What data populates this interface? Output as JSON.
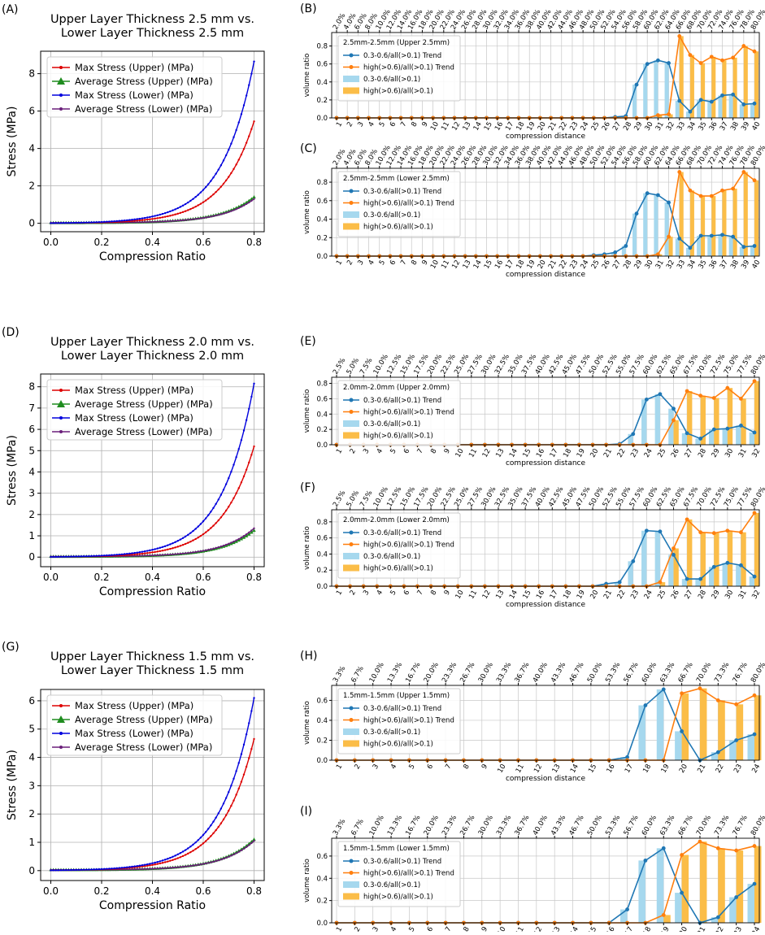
{
  "chart_data": [
    {
      "type": "line",
      "panel": "(A)",
      "title": "Upper Layer Thickness 2.5 mm vs.\nLower Layer Thickness 2.5 mm",
      "xlabel": "Compression Ratio",
      "ylabel": "Stress (MPa)",
      "xlim": [
        -0.04,
        0.84
      ],
      "ylim": [
        -0.45,
        9.2
      ],
      "xticks": [
        "0.0",
        "0.2",
        "0.4",
        "0.6",
        "0.8"
      ],
      "yticks": [
        "0",
        "2",
        "4",
        "6",
        "8"
      ],
      "series": [
        {
          "name": "Max Stress (Upper) (MPa)",
          "color": "#dd0000",
          "marker": "dot",
          "max": 5.45
        },
        {
          "name": "Average Stress (Upper) (MPa)",
          "color": "#1e8c1e",
          "marker": "triangle",
          "max": 1.4
        },
        {
          "name": "Max Stress (Lower) (MPa)",
          "color": "#0000dd",
          "marker": "dot",
          "max": 8.65
        },
        {
          "name": "Average Stress (Lower) (MPa)",
          "color": "#6a1f7a",
          "marker": "dot",
          "max": 1.3
        }
      ]
    },
    {
      "type": "bar",
      "panel": "(B)",
      "legend_title": "2.5mm-2.5mm (Upper 2.5mm)",
      "xlabel": "compression distance",
      "ylabel": "volume ratio",
      "ylim": [
        0,
        0.95
      ],
      "yticks": [
        "0.0",
        "0.2",
        "0.4",
        "0.6",
        "0.8"
      ],
      "categories": [
        "1",
        "2",
        "3",
        "4",
        "5",
        "6",
        "7",
        "8",
        "9",
        "10",
        "11",
        "12",
        "13",
        "14",
        "15",
        "16",
        "17",
        "18",
        "19",
        "20",
        "21",
        "22",
        "23",
        "24",
        "25",
        "26",
        "27",
        "28",
        "29",
        "30",
        "31",
        "32",
        "33",
        "34",
        "35",
        "36",
        "37",
        "38",
        "39",
        "40"
      ],
      "top_labels": [
        "2.0%",
        "4.0%",
        "6.0%",
        "8.0%",
        "10.0%",
        "12.0%",
        "14.0%",
        "16.0%",
        "18.0%",
        "20.0%",
        "22.0%",
        "24.0%",
        "26.0%",
        "28.0%",
        "30.0%",
        "32.0%",
        "34.0%",
        "36.0%",
        "38.0%",
        "40.0%",
        "42.0%",
        "44.0%",
        "46.0%",
        "48.0%",
        "50.0%",
        "52.0%",
        "54.0%",
        "56.0%",
        "58.0%",
        "60.0%",
        "62.0%",
        "64.0%",
        "66.0%",
        "68.0%",
        "70.0%",
        "72.0%",
        "74.0%",
        "76.0%",
        "78.0%",
        "80.0%"
      ],
      "series": [
        {
          "name": "0.3-0.6/all(>0.1) Trend",
          "values": [
            0,
            0,
            0,
            0,
            0,
            0,
            0,
            0,
            0,
            0,
            0,
            0,
            0,
            0,
            0,
            0,
            0,
            0,
            0,
            0,
            0,
            0,
            0,
            0,
            0,
            0,
            0.01,
            0.02,
            0.37,
            0.6,
            0.64,
            0.61,
            0.19,
            0.07,
            0.2,
            0.18,
            0.25,
            0.26,
            0.15,
            0.16
          ]
        },
        {
          "name": "high(>0.6)/all(>0.1) Trend",
          "values": [
            0,
            0,
            0,
            0,
            0,
            0,
            0,
            0,
            0,
            0,
            0,
            0,
            0,
            0,
            0,
            0,
            0,
            0,
            0,
            0,
            0,
            0,
            0,
            0,
            0,
            0,
            0,
            0,
            0,
            0,
            0.03,
            0.04,
            0.91,
            0.7,
            0.61,
            0.68,
            0.64,
            0.67,
            0.8,
            0.74
          ]
        },
        {
          "name": "0.3-0.6/all(>0.1)"
        },
        {
          "name": "high(>0.6)/all(>0.1)"
        }
      ]
    },
    {
      "type": "bar",
      "panel": "(C)",
      "legend_title": "2.5mm-2.5mm (Lower 2.5mm)",
      "xlabel": "compression distance",
      "ylabel": "volume ratio",
      "ylim": [
        0,
        0.95
      ],
      "yticks": [
        "0.0",
        "0.2",
        "0.4",
        "0.6",
        "0.8"
      ],
      "categories": [
        "1",
        "2",
        "3",
        "4",
        "5",
        "6",
        "7",
        "8",
        "9",
        "10",
        "11",
        "12",
        "13",
        "14",
        "15",
        "16",
        "17",
        "18",
        "19",
        "20",
        "21",
        "22",
        "23",
        "24",
        "25",
        "26",
        "27",
        "28",
        "29",
        "30",
        "31",
        "32",
        "33",
        "34",
        "35",
        "36",
        "37",
        "38",
        "39",
        "40"
      ],
      "top_labels": [
        "2.0%",
        "4.0%",
        "6.0%",
        "8.0%",
        "10.0%",
        "12.0%",
        "14.0%",
        "16.0%",
        "18.0%",
        "20.0%",
        "22.0%",
        "24.0%",
        "26.0%",
        "28.0%",
        "30.0%",
        "32.0%",
        "34.0%",
        "36.0%",
        "38.0%",
        "40.0%",
        "42.0%",
        "44.0%",
        "46.0%",
        "48.0%",
        "50.0%",
        "52.0%",
        "54.0%",
        "56.0%",
        "58.0%",
        "60.0%",
        "62.0%",
        "64.0%",
        "66.0%",
        "68.0%",
        "70.0%",
        "72.0%",
        "74.0%",
        "76.0%",
        "78.0%",
        "80.0%"
      ],
      "series": [
        {
          "name": "0.3-0.6/all(>0.1) Trend",
          "values": [
            0,
            0,
            0,
            0,
            0,
            0,
            0,
            0,
            0,
            0,
            0,
            0,
            0,
            0,
            0,
            0,
            0,
            0,
            0,
            0,
            0,
            0,
            0,
            0,
            0.01,
            0.02,
            0.04,
            0.11,
            0.46,
            0.68,
            0.66,
            0.58,
            0.19,
            0.09,
            0.22,
            0.22,
            0.23,
            0.21,
            0.1,
            0.11
          ]
        },
        {
          "name": "high(>0.6)/all(>0.1) Trend",
          "values": [
            0,
            0,
            0,
            0,
            0,
            0,
            0,
            0,
            0,
            0,
            0,
            0,
            0,
            0,
            0,
            0,
            0,
            0,
            0,
            0,
            0,
            0,
            0,
            0,
            0,
            0,
            0,
            0,
            0,
            0,
            0.02,
            0.21,
            0.91,
            0.71,
            0.65,
            0.65,
            0.71,
            0.73,
            0.91,
            0.82
          ]
        },
        {
          "name": "0.3-0.6/all(>0.1)"
        },
        {
          "name": "high(>0.6)/all(>0.1)"
        }
      ]
    },
    {
      "type": "line",
      "panel": "(D)",
      "title": "Upper Layer Thickness 2.0 mm vs.\nLower Layer Thickness 2.0 mm",
      "xlabel": "Compression Ratio",
      "ylabel": "Stress (MPa)",
      "xlim": [
        -0.04,
        0.84
      ],
      "ylim": [
        -0.45,
        8.6
      ],
      "xticks": [
        "0.0",
        "0.2",
        "0.4",
        "0.6",
        "0.8"
      ],
      "yticks": [
        "0",
        "1",
        "2",
        "3",
        "4",
        "5",
        "6",
        "7",
        "8"
      ],
      "series": [
        {
          "name": "Max Stress (Upper) (MPa)",
          "color": "#dd0000",
          "marker": "dot",
          "max": 5.2
        },
        {
          "name": "Average Stress (Upper) (MPa)",
          "color": "#1e8c1e",
          "marker": "triangle",
          "max": 1.25
        },
        {
          "name": "Max Stress (Lower) (MPa)",
          "color": "#0000dd",
          "marker": "dot",
          "max": 8.15
        },
        {
          "name": "Average Stress (Lower) (MPa)",
          "color": "#6a1f7a",
          "marker": "dot",
          "max": 1.35
        }
      ]
    },
    {
      "type": "bar",
      "panel": "(E)",
      "legend_title": "2.0mm-2.0mm (Upper 2.0mm)",
      "xlabel": "compression distance",
      "ylabel": "volume ratio",
      "ylim": [
        0,
        0.88
      ],
      "yticks": [
        "0.0",
        "0.2",
        "0.4",
        "0.6",
        "0.8"
      ],
      "categories": [
        "1",
        "2",
        "3",
        "4",
        "5",
        "6",
        "7",
        "8",
        "9",
        "10",
        "11",
        "12",
        "13",
        "14",
        "15",
        "16",
        "17",
        "18",
        "19",
        "20",
        "21",
        "22",
        "23",
        "24",
        "25",
        "26",
        "27",
        "28",
        "29",
        "30",
        "31",
        "32"
      ],
      "top_labels": [
        "2.5%",
        "5.0%",
        "7.5%",
        "10.0%",
        "12.5%",
        "15.0%",
        "17.5%",
        "20.0%",
        "22.5%",
        "25.0%",
        "27.5%",
        "30.0%",
        "32.5%",
        "35.0%",
        "37.5%",
        "40.0%",
        "42.5%",
        "45.0%",
        "47.5%",
        "50.0%",
        "52.5%",
        "55.0%",
        "57.5%",
        "60.0%",
        "62.5%",
        "65.0%",
        "67.5%",
        "70.0%",
        "72.5%",
        "75.0%",
        "77.5%",
        "80.0%"
      ],
      "series": [
        {
          "name": "0.3-0.6/all(>0.1) Trend",
          "values": [
            0,
            0,
            0,
            0,
            0,
            0,
            0,
            0,
            0,
            0,
            0,
            0,
            0,
            0,
            0,
            0,
            0,
            0,
            0,
            0,
            0,
            0.01,
            0.14,
            0.59,
            0.66,
            0.47,
            0.15,
            0.08,
            0.2,
            0.21,
            0.25,
            0.16
          ]
        },
        {
          "name": "high(>0.6)/all(>0.1) Trend",
          "values": [
            0,
            0,
            0,
            0,
            0,
            0,
            0,
            0,
            0,
            0,
            0,
            0,
            0,
            0,
            0,
            0,
            0,
            0,
            0,
            0,
            0,
            0,
            0,
            0,
            0,
            0.32,
            0.7,
            0.64,
            0.61,
            0.74,
            0.6,
            0.83
          ]
        },
        {
          "name": "0.3-0.6/all(>0.1)"
        },
        {
          "name": "high(>0.6)/all(>0.1)"
        }
      ]
    },
    {
      "type": "bar",
      "panel": "(F)",
      "legend_title": "2.0mm-2.0mm (Lower 2.0mm)",
      "xlabel": "compression distance",
      "ylabel": "volume ratio",
      "ylim": [
        0,
        0.95
      ],
      "yticks": [
        "0.0",
        "0.2",
        "0.4",
        "0.6",
        "0.8"
      ],
      "categories": [
        "1",
        "2",
        "3",
        "4",
        "5",
        "6",
        "7",
        "8",
        "9",
        "10",
        "11",
        "12",
        "13",
        "14",
        "15",
        "16",
        "17",
        "18",
        "19",
        "20",
        "21",
        "22",
        "23",
        "24",
        "25",
        "26",
        "27",
        "28",
        "29",
        "30",
        "31",
        "32"
      ],
      "top_labels": [
        "2.5%",
        "5.0%",
        "7.5%",
        "10.0%",
        "12.5%",
        "15.0%",
        "17.5%",
        "20.0%",
        "22.5%",
        "25.0%",
        "27.5%",
        "30.0%",
        "32.5%",
        "35.0%",
        "37.5%",
        "40.0%",
        "42.5%",
        "45.0%",
        "47.5%",
        "50.0%",
        "52.5%",
        "55.0%",
        "57.5%",
        "60.0%",
        "62.5%",
        "65.0%",
        "67.5%",
        "70.0%",
        "72.5%",
        "75.0%",
        "77.5%",
        "80.0%"
      ],
      "series": [
        {
          "name": "0.3-0.6/all(>0.1) Trend",
          "values": [
            0,
            0,
            0,
            0,
            0,
            0,
            0,
            0,
            0,
            0,
            0,
            0,
            0,
            0,
            0,
            0,
            0,
            0,
            0,
            0,
            0.03,
            0.05,
            0.31,
            0.69,
            0.68,
            0.39,
            0.09,
            0.09,
            0.24,
            0.29,
            0.26,
            0.12
          ]
        },
        {
          "name": "high(>0.6)/all(>0.1) Trend",
          "values": [
            0,
            0,
            0,
            0,
            0,
            0,
            0,
            0,
            0,
            0,
            0,
            0,
            0,
            0,
            0,
            0,
            0,
            0,
            0,
            0,
            0,
            0,
            0,
            0,
            0.05,
            0.47,
            0.83,
            0.67,
            0.66,
            0.69,
            0.67,
            0.91
          ]
        },
        {
          "name": "0.3-0.6/all(>0.1)"
        },
        {
          "name": "high(>0.6)/all(>0.1)"
        }
      ]
    },
    {
      "type": "line",
      "panel": "(G)",
      "title": "Upper Layer Thickness 1.5 mm vs.\nLower Layer Thickness 1.5 mm",
      "xlabel": "Compression Ratio",
      "ylabel": "Stress (MPa)",
      "xlim": [
        -0.04,
        0.84
      ],
      "ylim": [
        -0.35,
        6.4
      ],
      "xticks": [
        "0.0",
        "0.2",
        "0.4",
        "0.6",
        "0.8"
      ],
      "yticks": [
        "0",
        "1",
        "2",
        "3",
        "4",
        "5",
        "6"
      ],
      "series": [
        {
          "name": "Max Stress (Upper) (MPa)",
          "color": "#dd0000",
          "marker": "dot",
          "max": 4.65
        },
        {
          "name": "Average Stress (Upper) (MPa)",
          "color": "#1e8c1e",
          "marker": "triangle",
          "max": 1.1
        },
        {
          "name": "Max Stress (Lower) (MPa)",
          "color": "#0000dd",
          "marker": "dot",
          "max": 6.1
        },
        {
          "name": "Average Stress (Lower) (MPa)",
          "color": "#6a1f7a",
          "marker": "dot",
          "max": 1.05
        }
      ]
    },
    {
      "type": "bar",
      "panel": "(H)",
      "legend_title": "1.5mm-1.5mm (Upper 1.5mm)",
      "xlabel": "compression distance",
      "ylabel": "volume ratio",
      "ylim": [
        0,
        0.75
      ],
      "yticks": [
        "0.0",
        "0.2",
        "0.4",
        "0.6"
      ],
      "categories": [
        "1",
        "2",
        "3",
        "4",
        "5",
        "6",
        "7",
        "8",
        "9",
        "10",
        "11",
        "12",
        "13",
        "14",
        "15",
        "16",
        "17",
        "18",
        "19",
        "20",
        "21",
        "22",
        "23",
        "24"
      ],
      "top_labels": [
        "3.3%",
        "6.7%",
        "10.0%",
        "13.3%",
        "16.7%",
        "20.0%",
        "23.3%",
        "26.7%",
        "30.0%",
        "33.3%",
        "36.7%",
        "40.0%",
        "43.3%",
        "46.7%",
        "50.0%",
        "53.3%",
        "56.7%",
        "60.0%",
        "63.3%",
        "66.7%",
        "70.0%",
        "73.3%",
        "76.7%",
        "80.0%"
      ],
      "series": [
        {
          "name": "0.3-0.6/all(>0.1) Trend",
          "values": [
            0,
            0,
            0,
            0,
            0,
            0,
            0,
            0,
            0,
            0,
            0,
            0,
            0,
            0,
            0,
            0,
            0.03,
            0.55,
            0.71,
            0.29,
            0,
            0.08,
            0.2,
            0.26
          ]
        },
        {
          "name": "high(>0.6)/all(>0.1) Trend",
          "values": [
            0,
            0,
            0,
            0,
            0,
            0,
            0,
            0,
            0,
            0,
            0,
            0,
            0,
            0,
            0,
            0,
            0,
            0,
            0,
            0.67,
            0.72,
            0.6,
            0.56,
            0.65
          ]
        },
        {
          "name": "0.3-0.6/all(>0.1)"
        },
        {
          "name": "high(>0.6)/all(>0.1)"
        }
      ]
    },
    {
      "type": "bar",
      "panel": "(I)",
      "legend_title": "1.5mm-1.5mm (Lower 1.5mm)",
      "xlabel": "compression distance",
      "ylabel": "volume ratio",
      "ylim": [
        0,
        0.76
      ],
      "yticks": [
        "0.0",
        "0.2",
        "0.4",
        "0.6"
      ],
      "categories": [
        "1",
        "2",
        "3",
        "4",
        "5",
        "6",
        "7",
        "8",
        "9",
        "10",
        "11",
        "12",
        "13",
        "14",
        "15",
        "16",
        "17",
        "18",
        "19",
        "20",
        "21",
        "22",
        "23",
        "24"
      ],
      "top_labels": [
        "3.3%",
        "6.7%",
        "10.0%",
        "13.3%",
        "16.7%",
        "20.0%",
        "23.3%",
        "26.7%",
        "30.0%",
        "33.3%",
        "36.7%",
        "40.0%",
        "43.3%",
        "46.7%",
        "50.0%",
        "53.3%",
        "56.7%",
        "60.0%",
        "63.3%",
        "66.7%",
        "70.0%",
        "73.3%",
        "76.7%",
        "80.0%"
      ],
      "series": [
        {
          "name": "0.3-0.6/all(>0.1) Trend",
          "values": [
            0,
            0,
            0,
            0,
            0,
            0,
            0,
            0,
            0,
            0,
            0,
            0,
            0,
            0,
            0,
            0,
            0.12,
            0.56,
            0.67,
            0.27,
            0,
            0.05,
            0.23,
            0.35
          ]
        },
        {
          "name": "high(>0.6)/all(>0.1) Trend",
          "values": [
            0,
            0,
            0,
            0,
            0,
            0,
            0,
            0,
            0,
            0,
            0,
            0,
            0,
            0,
            0,
            0,
            0,
            0,
            0.07,
            0.61,
            0.73,
            0.67,
            0.65,
            0.69
          ]
        },
        {
          "name": "0.3-0.6/all(>0.1)"
        },
        {
          "name": "high(>0.6)/all(>0.1)"
        }
      ]
    }
  ],
  "colors": {
    "trend_mid": "#1f77b4",
    "trend_high": "#ff7f0e",
    "bar_mid": "#a6d8ee",
    "bar_high": "#fbbd48"
  }
}
